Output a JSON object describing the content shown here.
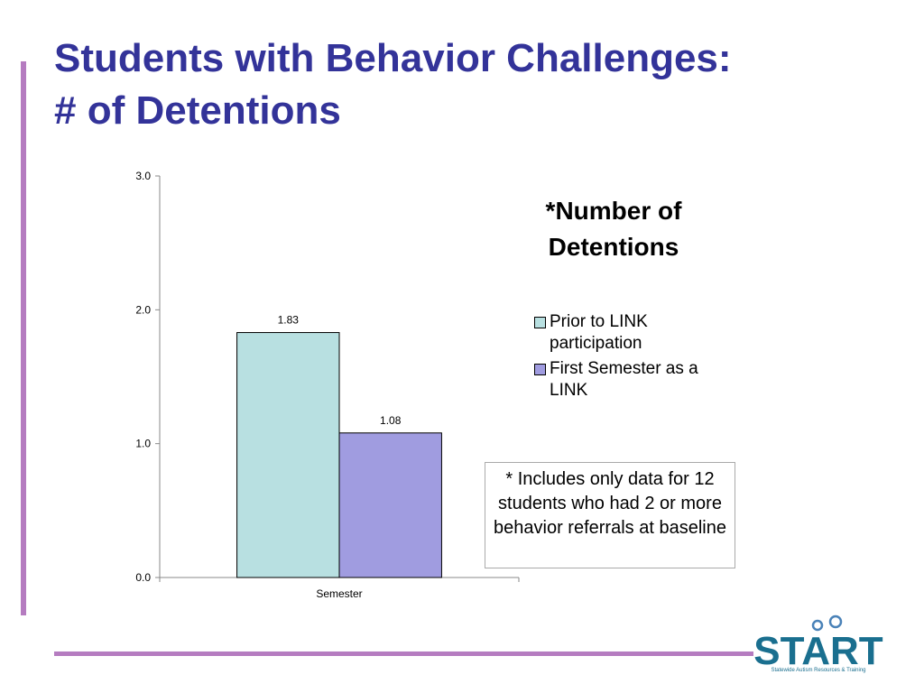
{
  "slide": {
    "title_lines": [
      "Students with Behavior Challenges:",
      "# of Detentions"
    ],
    "logo": {
      "name": "START",
      "tagline": "Statewide Autism Resources & Training"
    }
  },
  "chart_data": {
    "type": "bar",
    "title": "*Number of Detentions",
    "categories": [
      "Semester"
    ],
    "series": [
      {
        "name": "Prior to LINK participation",
        "color": "#b8e0e1",
        "values": [
          1.83
        ]
      },
      {
        "name": "First Semester as a LINK",
        "color": "#a09ce0",
        "values": [
          1.08
        ]
      }
    ],
    "ylim": [
      0,
      3
    ],
    "yticks": [
      {
        "value": 0,
        "label": "0.0"
      },
      {
        "value": 1,
        "label": "1.0"
      },
      {
        "value": 2,
        "label": "2.0"
      },
      {
        "value": 3,
        "label": "3.0"
      }
    ],
    "annotation": "* Includes only data for 12 students who had 2 or more behavior referrals at baseline"
  }
}
